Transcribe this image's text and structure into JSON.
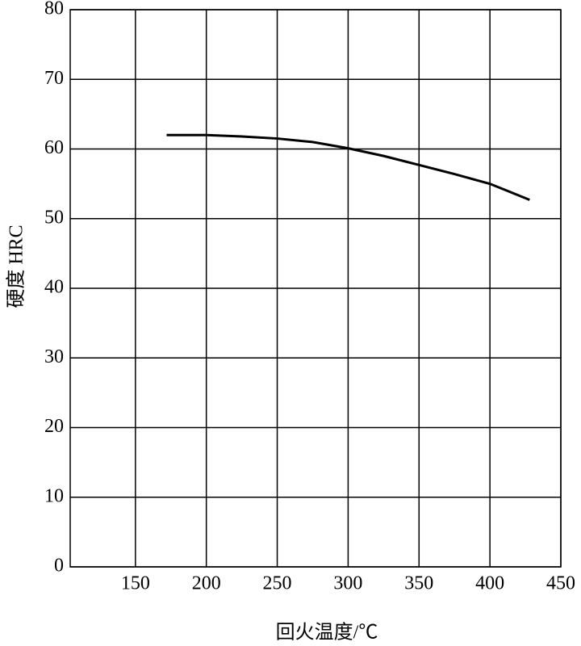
{
  "chart_data": {
    "type": "line",
    "x_label": "回火温度/℃",
    "y_label": "硬度  HRC",
    "x": [
      172,
      200,
      225,
      250,
      275,
      300,
      325,
      350,
      375,
      400,
      428
    ],
    "series": [
      {
        "name": "HRC",
        "color": "#000000",
        "values": [
          62,
          62,
          61.8,
          61.5,
          61,
          60.1,
          59,
          57.7,
          56.4,
          55,
          52.7
        ]
      }
    ],
    "xlim": [
      104,
      450
    ],
    "xticks": [
      150,
      200,
      250,
      300,
      350,
      400,
      450
    ],
    "ylim": [
      0,
      80
    ],
    "yticks": [
      0,
      10,
      20,
      30,
      40,
      50,
      60,
      70,
      80
    ],
    "grid": true
  }
}
